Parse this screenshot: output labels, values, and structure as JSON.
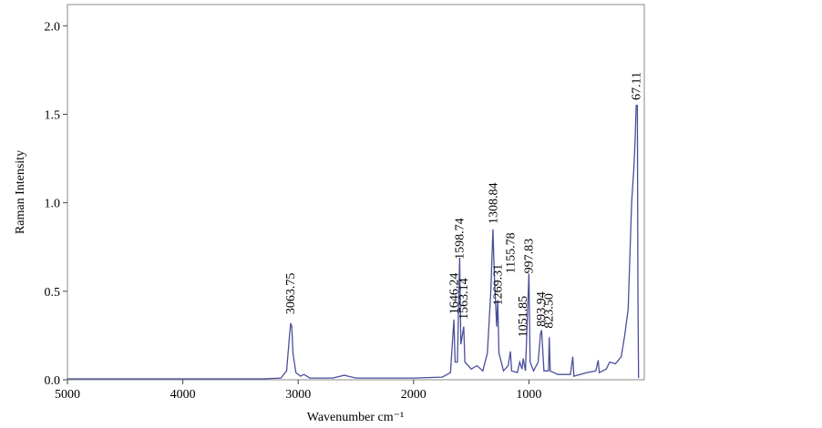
{
  "chart_data": {
    "type": "line",
    "xlabel": "Wavenumber cm⁻¹",
    "ylabel": "Raman Intensity",
    "xlim": [
      5000,
      0
    ],
    "ylim": [
      0,
      2.12
    ],
    "xticks": [
      5000,
      4000,
      3000,
      2000,
      1000
    ],
    "yticks": [
      {
        "value": 0,
        "label": "0.0"
      },
      {
        "value": 0.5,
        "label": "0.5"
      },
      {
        "value": 1,
        "label": "1.0"
      },
      {
        "value": 1.5,
        "label": "1.5"
      },
      {
        "value": 2,
        "label": "2.0"
      }
    ],
    "series": [
      {
        "color": "#4a4f9a",
        "x": [
          5000,
          4000,
          3300,
          3150,
          3100,
          3075,
          3065,
          3055,
          3045,
          3020,
          2980,
          2950,
          2900,
          2700,
          2600,
          2500,
          2000,
          1750,
          1680,
          1650,
          1640,
          1620,
          1600,
          1590,
          1565,
          1555,
          1500,
          1450,
          1400,
          1360,
          1330,
          1312,
          1300,
          1280,
          1270,
          1260,
          1220,
          1180,
          1160,
          1150,
          1100,
          1080,
          1060,
          1050,
          1030,
          1000,
          990,
          960,
          920,
          900,
          890,
          870,
          830,
          824,
          815,
          750,
          640,
          620,
          610,
          500,
          420,
          400,
          390,
          330,
          300,
          250,
          200,
          170,
          140,
          110,
          90,
          80,
          70,
          60,
          55,
          50
        ],
        "values": [
          0.005,
          0.005,
          0.005,
          0.01,
          0.05,
          0.25,
          0.32,
          0.3,
          0.15,
          0.04,
          0.02,
          0.03,
          0.01,
          0.01,
          0.025,
          0.01,
          0.01,
          0.015,
          0.04,
          0.34,
          0.1,
          0.1,
          0.69,
          0.2,
          0.3,
          0.1,
          0.06,
          0.08,
          0.05,
          0.15,
          0.5,
          0.85,
          0.6,
          0.3,
          0.45,
          0.15,
          0.05,
          0.08,
          0.16,
          0.05,
          0.04,
          0.1,
          0.06,
          0.12,
          0.05,
          0.6,
          0.1,
          0.05,
          0.1,
          0.26,
          0.28,
          0.05,
          0.05,
          0.24,
          0.05,
          0.03,
          0.03,
          0.13,
          0.02,
          0.04,
          0.05,
          0.11,
          0.04,
          0.06,
          0.1,
          0.09,
          0.13,
          0.25,
          0.4,
          1.0,
          1.2,
          1.35,
          1.55,
          1.55,
          0.5,
          0.01
        ]
      }
    ],
    "annotations": [
      {
        "label": "3063.75",
        "x": 3063.75,
        "y": 0.37
      },
      {
        "label": "1646.24",
        "x": 1646.24,
        "y": 0.37
      },
      {
        "label": "1598.74",
        "x": 1598.74,
        "y": 0.68
      },
      {
        "label": "1563.14",
        "x": 1563.14,
        "y": 0.34
      },
      {
        "label": "1308.84",
        "x": 1308.84,
        "y": 0.88
      },
      {
        "label": "1269.31",
        "x": 1269.31,
        "y": 0.42
      },
      {
        "label": "1155.78",
        "x": 1155.78,
        "y": 0.6
      },
      {
        "label": "1051.85",
        "x": 1051.85,
        "y": 0.24
      },
      {
        "label": "997.83",
        "x": 997.83,
        "y": 0.6
      },
      {
        "label": "893.94",
        "x": 893.94,
        "y": 0.3
      },
      {
        "label": "823.50",
        "x": 823.5,
        "y": 0.29
      },
      {
        "label": "67.11",
        "x": 67.11,
        "y": 1.58
      }
    ]
  }
}
